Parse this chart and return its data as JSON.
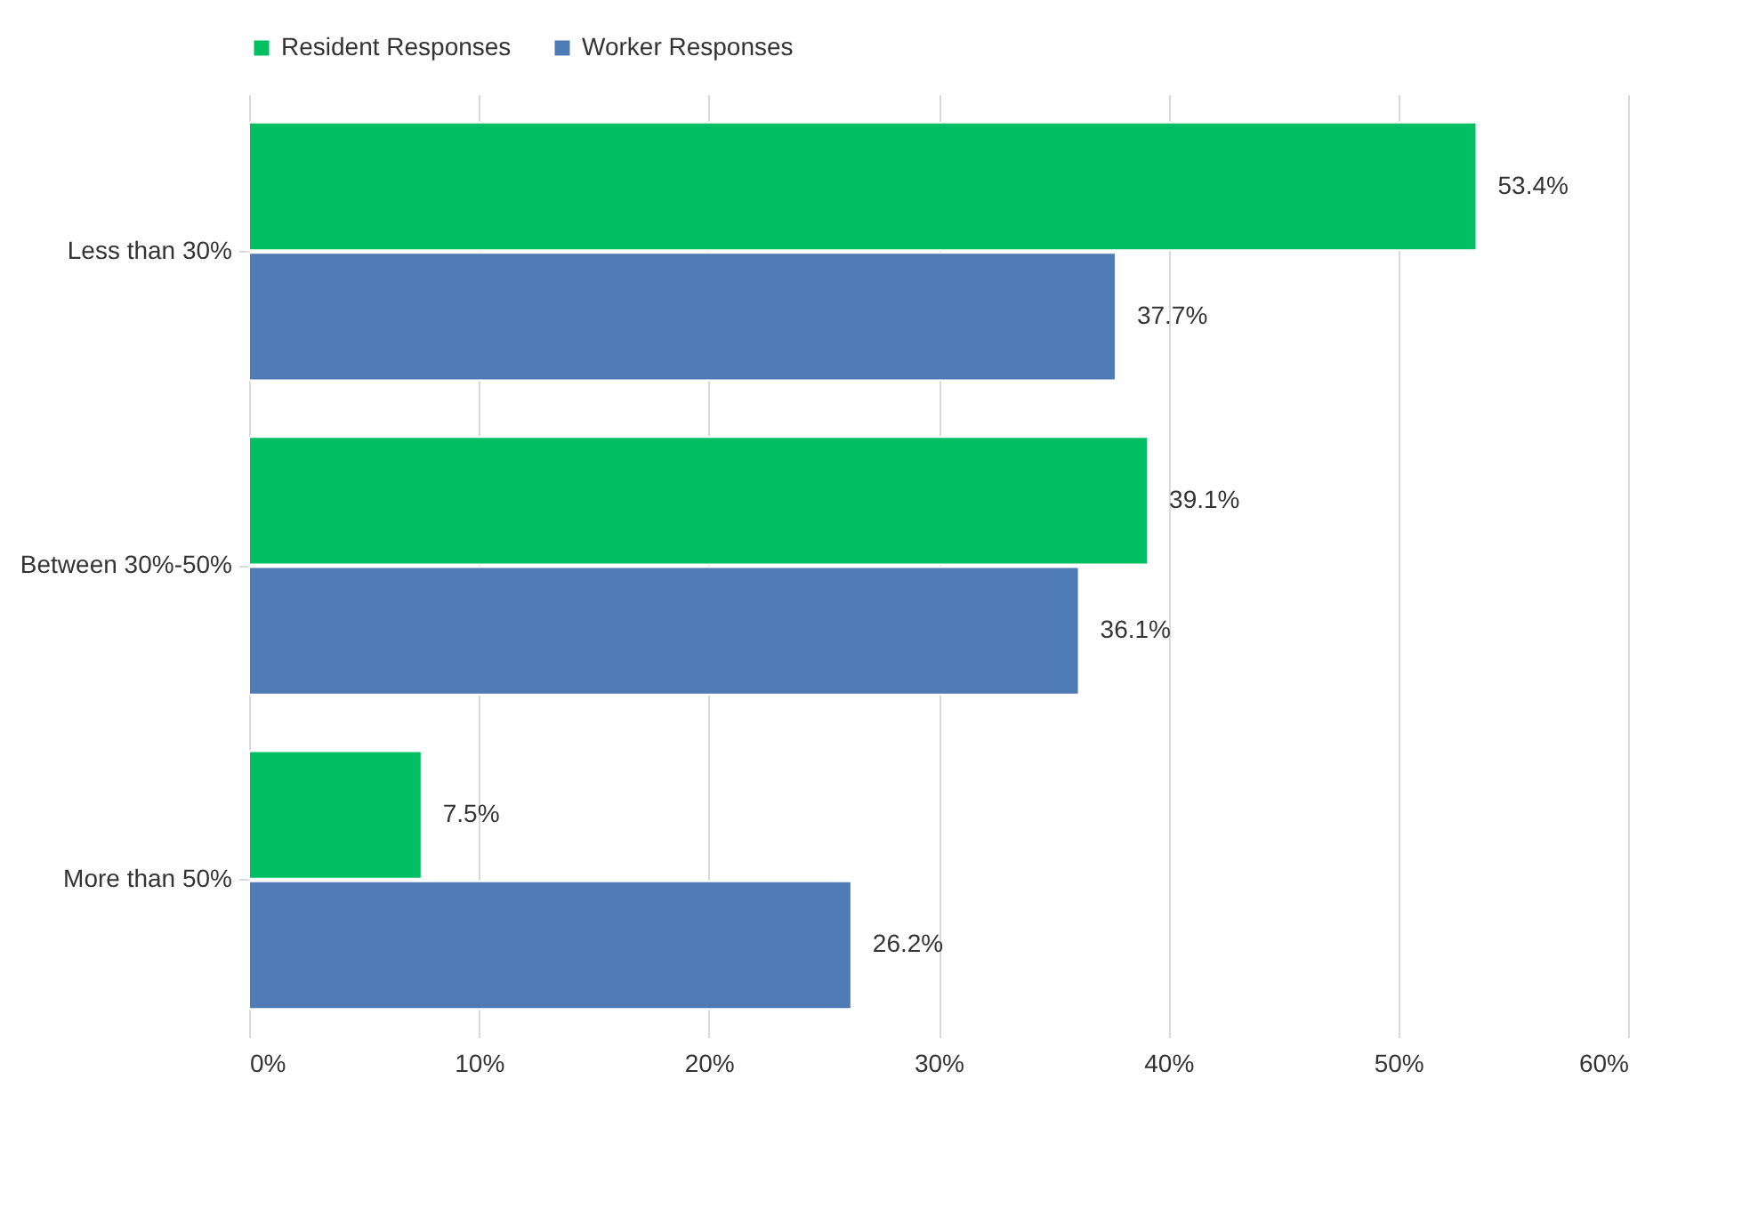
{
  "chart_data": {
    "type": "bar",
    "orientation": "horizontal",
    "categories": [
      "Less than 30%",
      "Between 30%-50%",
      "More than 50%"
    ],
    "series": [
      {
        "name": "Resident Responses",
        "color": "#00bf63",
        "values": [
          53.4,
          39.1,
          7.5
        ],
        "value_labels": [
          "53.4%",
          "39.1%",
          "7.5%"
        ]
      },
      {
        "name": "Worker Responses",
        "color": "#4e7ab5",
        "values": [
          37.7,
          36.1,
          26.2
        ],
        "value_labels": [
          "37.7%",
          "36.1%",
          "26.2%"
        ]
      }
    ],
    "xlim": [
      0,
      60
    ],
    "xticks": [
      {
        "value": 0,
        "label": "0%"
      },
      {
        "value": 10,
        "label": "10%"
      },
      {
        "value": 20,
        "label": "20%"
      },
      {
        "value": 30,
        "label": "30%"
      },
      {
        "value": 40,
        "label": "40%"
      },
      {
        "value": 50,
        "label": "50%"
      },
      {
        "value": 60,
        "label": "60%"
      }
    ],
    "grid": "x",
    "legend": "top"
  }
}
